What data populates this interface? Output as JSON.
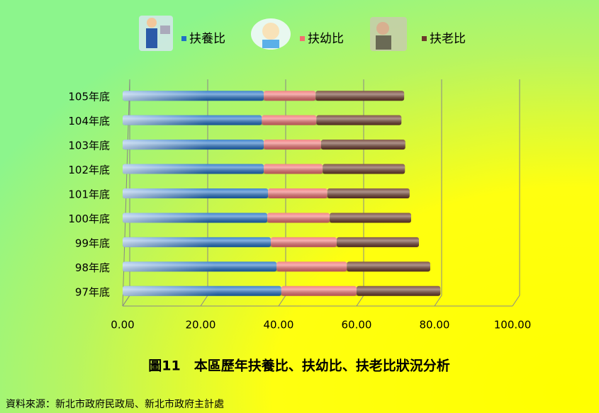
{
  "chart_data": {
    "type": "bar",
    "orientation": "horizontal",
    "stacked": true,
    "title": "圖11　本區歷年扶養比、扶幼比、扶老比狀況分析",
    "source": "資料來源：新北市政府民政局、新北市政府主計處",
    "categories": [
      "105年底",
      "104年底",
      "103年底",
      "102年底",
      "101年底",
      "100年底",
      "99年底",
      "98年底",
      "97年底"
    ],
    "series": [
      {
        "name": "扶養比",
        "color": "#1f6fc5",
        "values": [
          36.2,
          35.7,
          36.2,
          36.2,
          37.3,
          37.1,
          38.0,
          39.5,
          40.7
        ]
      },
      {
        "name": "扶幼比",
        "color": "#f07070",
        "values": [
          13.3,
          14.0,
          14.7,
          15.1,
          15.2,
          16.0,
          16.9,
          18.0,
          19.3
        ]
      },
      {
        "name": "扶老比",
        "color": "#6b3a2a",
        "values": [
          22.7,
          21.8,
          21.6,
          21.1,
          21.1,
          20.9,
          21.1,
          21.4,
          21.5
        ]
      }
    ],
    "xlim": [
      0,
      100
    ],
    "xticks": [
      {
        "value": 0,
        "label": "0.00"
      },
      {
        "value": 20,
        "label": "20.00"
      },
      {
        "value": 40,
        "label": "40.00"
      },
      {
        "value": 60,
        "label": "60.00"
      },
      {
        "value": 80,
        "label": "80.00"
      },
      {
        "value": 100,
        "label": "100.00"
      }
    ],
    "grid": true,
    "legend": "top"
  }
}
